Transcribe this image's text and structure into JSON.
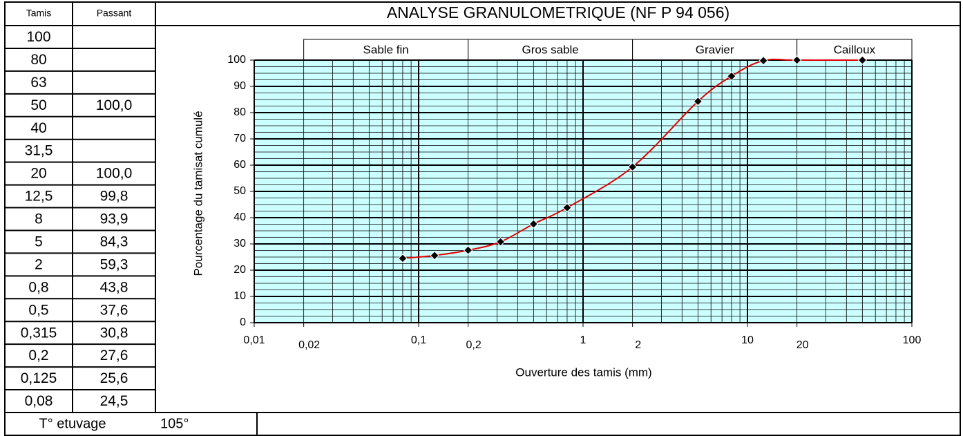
{
  "table": {
    "header": [
      "Tamis",
      "Passant"
    ],
    "rows": [
      [
        "100",
        null
      ],
      [
        "80",
        null
      ],
      [
        "63",
        null
      ],
      [
        "50",
        "100,0"
      ],
      [
        "40",
        null
      ],
      [
        "31,5",
        null
      ],
      [
        "20",
        "100,0"
      ],
      [
        "12,5",
        "99,8"
      ],
      [
        "8",
        "93,9"
      ],
      [
        "5",
        "84,3"
      ],
      [
        "2",
        "59,3"
      ],
      [
        "0,8",
        "43,8"
      ],
      [
        "0,5",
        "37,6"
      ],
      [
        "0,315",
        "30,8"
      ],
      [
        "0,2",
        "27,6"
      ],
      [
        "0,125",
        "25,6"
      ],
      [
        "0,08",
        "24,5"
      ]
    ],
    "footer": {
      "label": "T° etuvage",
      "value": "105°"
    }
  },
  "chart_data": {
    "type": "line",
    "title": "ANALYSE GRANULOMETRIQUE  (NF P 94 056)",
    "x_label": "Ouverture des tamis (mm)",
    "y_label": "Pourcentage du tamisat cumulé",
    "zones": [
      {
        "label": "Sable fin",
        "from": 0.02,
        "to": 0.2
      },
      {
        "label": "Gros sable",
        "from": 0.2,
        "to": 2
      },
      {
        "label": "Gravier",
        "from": 2,
        "to": 20
      },
      {
        "label": "Cailloux",
        "from": 20,
        "to": 100
      }
    ],
    "x": [
      0.08,
      0.125,
      0.2,
      0.315,
      0.5,
      0.8,
      2,
      5,
      8,
      12.5,
      20,
      50
    ],
    "values": [
      24.5,
      25.6,
      27.6,
      30.8,
      37.6,
      43.8,
      59.3,
      84.3,
      93.9,
      99.8,
      100,
      100
    ],
    "color": "#e00000",
    "x_scale": "log",
    "grid": true,
    "xlim": [
      0.01,
      100
    ],
    "ylim": [
      0,
      100
    ],
    "xticks": [
      {
        "value": 0.01,
        "label": "0,01"
      },
      {
        "value": 0.02,
        "label": "0,02"
      },
      {
        "value": 0.1,
        "label": "0,1"
      },
      {
        "value": 0.2,
        "label": "0,2"
      },
      1,
      2,
      10,
      20,
      100
    ],
    "yticks": [
      0,
      10,
      20,
      30,
      40,
      50,
      60,
      70,
      80,
      90,
      100
    ]
  }
}
